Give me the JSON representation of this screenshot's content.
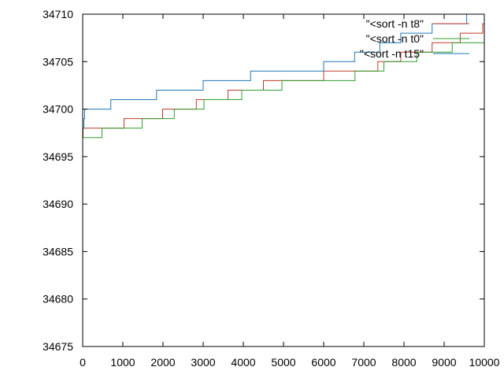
{
  "chart_data": {
    "type": "line",
    "step": true,
    "title": "",
    "xlabel": "",
    "ylabel": "",
    "xlim": [
      0,
      10000
    ],
    "ylim": [
      34675,
      34710
    ],
    "xticks": [
      0,
      1000,
      2000,
      3000,
      4000,
      5000,
      6000,
      7000,
      8000,
      9000,
      10000
    ],
    "yticks": [
      34675,
      34680,
      34685,
      34690,
      34695,
      34700,
      34705,
      34710
    ],
    "grid": false,
    "legend": "top-right",
    "series": [
      {
        "name": "\"<sort -n t8\"",
        "color": "#c0392b",
        "points": [
          [
            0,
            34697
          ],
          [
            10,
            34698
          ],
          [
            1030,
            34699
          ],
          [
            1990,
            34700
          ],
          [
            2830,
            34701
          ],
          [
            3620,
            34702
          ],
          [
            4500,
            34703
          ],
          [
            6000,
            34704
          ],
          [
            7350,
            34705
          ],
          [
            7920,
            34706
          ],
          [
            8700,
            34707
          ],
          [
            9400,
            34708
          ],
          [
            9960,
            34709
          ],
          [
            10000,
            34709
          ]
        ]
      },
      {
        "name": "\"<sort -n t0\"",
        "color": "#2e9e2e",
        "points": [
          [
            0,
            34697
          ],
          [
            480,
            34698
          ],
          [
            1480,
            34699
          ],
          [
            2280,
            34700
          ],
          [
            3020,
            34701
          ],
          [
            3960,
            34702
          ],
          [
            4960,
            34703
          ],
          [
            6780,
            34704
          ],
          [
            7500,
            34705
          ],
          [
            8320,
            34706
          ],
          [
            9200,
            34707
          ],
          [
            10000,
            34707
          ]
        ]
      },
      {
        "name": "\"<sort -n t15\"",
        "color": "#1f77b4",
        "points": [
          [
            0,
            34698
          ],
          [
            30,
            34699
          ],
          [
            50,
            34700
          ],
          [
            700,
            34701
          ],
          [
            1840,
            34702
          ],
          [
            3000,
            34703
          ],
          [
            4180,
            34704
          ],
          [
            6000,
            34705
          ],
          [
            6770,
            34706
          ],
          [
            7400,
            34707
          ],
          [
            7920,
            34708
          ],
          [
            8700,
            34709
          ],
          [
            9560,
            34710
          ],
          [
            10000,
            34710
          ]
        ]
      }
    ]
  }
}
